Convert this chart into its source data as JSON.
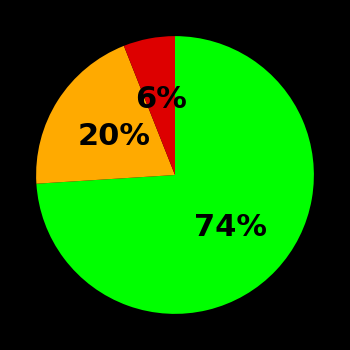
{
  "slices": [
    74,
    20,
    6
  ],
  "colors": [
    "#00ff00",
    "#ffaa00",
    "#dd0000"
  ],
  "labels": [
    "74%",
    "20%",
    "6%"
  ],
  "background_color": "#000000",
  "startangle": 90,
  "label_fontsize": 22,
  "label_fontweight": "bold",
  "label_radii": [
    0.55,
    0.52,
    0.55
  ]
}
